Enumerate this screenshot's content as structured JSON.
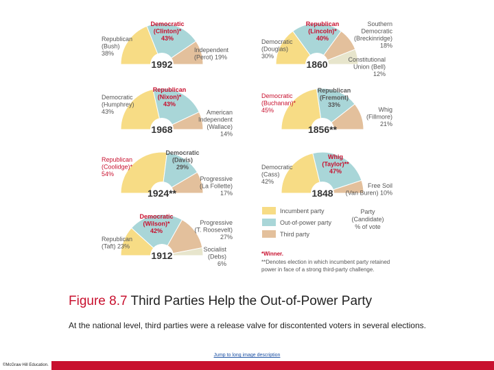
{
  "colors": {
    "incumbent": "#f7dc85",
    "out_of_power": "#a9d6d8",
    "third": "#e3c09c",
    "other": "#e7e5cc",
    "winner": "#c8102e",
    "text": "#555555"
  },
  "chart_data": [
    {
      "type": "pie",
      "title": "1992",
      "slices": [
        {
          "lines": [
            "Republican",
            "(Bush)",
            "38%"
          ],
          "value": 38,
          "category": "incumbent",
          "winner": false
        },
        {
          "lines": [
            "Democratic",
            "(Clinton)*",
            "43%"
          ],
          "value": 43,
          "category": "out_of_power",
          "winner": true
        },
        {
          "lines": [
            "Independent",
            "(Perot) 19%"
          ],
          "value": 19,
          "category": "third",
          "winner": false
        }
      ]
    },
    {
      "type": "pie",
      "title": "1860",
      "slices": [
        {
          "lines": [
            "Democratic",
            "(Douglas)",
            "30%"
          ],
          "value": 30,
          "category": "incumbent",
          "winner": false
        },
        {
          "lines": [
            "Republican",
            "(Lincoln)*",
            "40%"
          ],
          "value": 40,
          "category": "out_of_power",
          "winner": true
        },
        {
          "lines": [
            "Southern",
            "Democratic",
            "(Breckinridge)",
            "18%"
          ],
          "value": 18,
          "category": "third",
          "winner": false
        },
        {
          "lines": [
            "Constitutional",
            "Union (Bell)",
            "12%"
          ],
          "value": 12,
          "category": "other",
          "winner": false
        }
      ]
    },
    {
      "type": "pie",
      "title": "1968",
      "slices": [
        {
          "lines": [
            "Democratic",
            "(Humphrey)",
            "43%"
          ],
          "value": 43,
          "category": "incumbent",
          "winner": false
        },
        {
          "lines": [
            "Republican",
            "(Nixon)*",
            "43%"
          ],
          "value": 43,
          "category": "out_of_power",
          "winner": true
        },
        {
          "lines": [
            "American",
            "Independent",
            "(Wallace)",
            "14%"
          ],
          "value": 14,
          "category": "third",
          "winner": false
        }
      ]
    },
    {
      "type": "pie",
      "title": "1856**",
      "slices": [
        {
          "lines": [
            "Democratic",
            "(Buchanan)*",
            "45%"
          ],
          "value": 45,
          "category": "incumbent",
          "winner": true
        },
        {
          "lines": [
            "Republican",
            "(Fremont)",
            "33%"
          ],
          "value": 33,
          "category": "out_of_power",
          "winner": false
        },
        {
          "lines": [
            "Whig",
            "(Fillmore)",
            "21%"
          ],
          "value": 21,
          "category": "third",
          "winner": false
        }
      ]
    },
    {
      "type": "pie",
      "title": "1924**",
      "slices": [
        {
          "lines": [
            "Republican",
            "(Coolidge)*",
            "54%"
          ],
          "value": 54,
          "category": "incumbent",
          "winner": true
        },
        {
          "lines": [
            "Democratic",
            "(Davis)",
            "29%"
          ],
          "value": 29,
          "category": "out_of_power",
          "winner": false
        },
        {
          "lines": [
            "Progressive",
            "(La Follette)",
            "17%"
          ],
          "value": 17,
          "category": "third",
          "winner": false
        }
      ]
    },
    {
      "type": "pie",
      "title": "1848",
      "slices": [
        {
          "lines": [
            "Democratic",
            "(Cass)",
            "42%"
          ],
          "value": 42,
          "category": "incumbent",
          "winner": false
        },
        {
          "lines": [
            "Whig",
            "(Taylor)**",
            "47%"
          ],
          "value": 47,
          "category": "out_of_power",
          "winner": true
        },
        {
          "lines": [
            "Free Soil",
            "(Van Buren) 10%"
          ],
          "value": 10,
          "category": "third",
          "winner": false
        }
      ]
    },
    {
      "type": "pie",
      "title": "1912",
      "slices": [
        {
          "lines": [
            "Republican",
            "(Taft) 23%"
          ],
          "value": 23,
          "category": "incumbent",
          "winner": false
        },
        {
          "lines": [
            "Democratic",
            "(Wilson)*",
            "42%"
          ],
          "value": 42,
          "category": "out_of_power",
          "winner": true
        },
        {
          "lines": [
            "Progressive",
            "(T. Roosevelt)",
            "27%"
          ],
          "value": 27,
          "category": "third",
          "winner": false
        },
        {
          "lines": [
            "Socialist",
            "(Debs)",
            "6%"
          ],
          "value": 6,
          "category": "other",
          "winner": false
        }
      ]
    }
  ],
  "legend": {
    "items": [
      {
        "label": "Incumbent party",
        "category": "incumbent"
      },
      {
        "label": "Out-of-power party",
        "category": "out_of_power"
      },
      {
        "label": "Third party",
        "category": "third"
      }
    ],
    "key": [
      "Party",
      "(Candidate)",
      "% of vote"
    ]
  },
  "notes": {
    "winner": "*Winner.",
    "incumbent_retained": [
      "**Denotes election in which incumbent party retained",
      "power in face of a strong third-party challenge."
    ]
  },
  "caption": {
    "figure_number": "Figure 8.7",
    "title": "Third Parties Help the Out-of-Power Party",
    "body": "At the national level, third parties were a release valve for discontented voters in several elections."
  },
  "long_description_link": "Jump to long image description",
  "copyright": "©McGraw Hill Education."
}
